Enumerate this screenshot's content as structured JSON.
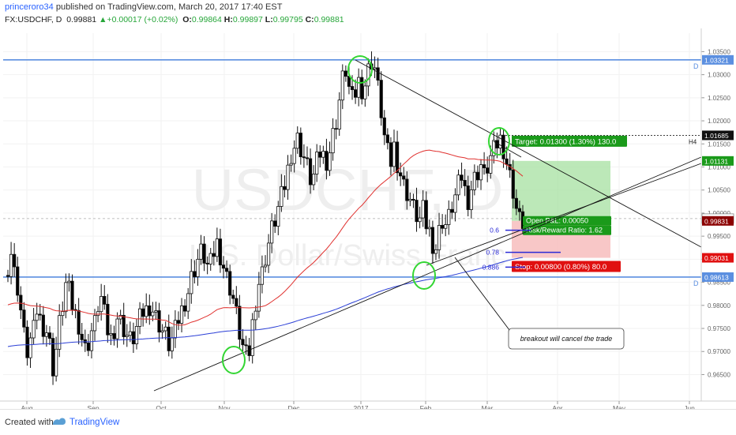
{
  "header": {
    "author": "princeroro34",
    "published_text": "published on TradingView.com, March 20, 2017 17:40 EST",
    "symbol": "FX:USDCHF, D",
    "last_price": "0.99881",
    "change": "+0.00017 (+0.02%)",
    "o_label": "O:",
    "o_value": "0.99864",
    "h_label": "H:",
    "h_value": "0.99897",
    "l_label": "L:",
    "l_value": "0.99795",
    "c_label": "C:",
    "c_value": "0.99881"
  },
  "footer": {
    "created_with": "Created with",
    "brand": "TradingView"
  },
  "watermark": {
    "symbol": "USDCHF, D",
    "name": "U.S. Dollar/Swiss Franc"
  },
  "colors": {
    "bull": "#ffffff",
    "bear": "#000000",
    "ma_red": "#e0312f",
    "ma_blue": "#2b3fd6",
    "level_line": "#5b8fe0",
    "target_green": "#1a9a1a",
    "stop_red": "#e01010",
    "highlight_circle": "#33d633",
    "fib": "#2b2bd6"
  },
  "chart_data": {
    "type": "candlestick",
    "x_axis_ticks": [
      "Aug",
      "Sep",
      "Oct",
      "Nov",
      "Dec",
      "2017",
      "Feb",
      "Mar",
      "Apr",
      "May",
      "Jun"
    ],
    "y_axis_ticks": [
      "1.03500",
      "1.03000",
      "1.02500",
      "1.02000",
      "1.01500",
      "1.01000",
      "1.00500",
      "1.00000",
      "0.99500",
      "0.99000",
      "0.98500",
      "0.98000",
      "0.97500",
      "0.97000",
      "0.96500"
    ],
    "ylim": [
      0.962,
      1.039
    ],
    "price_tags": [
      {
        "label": "1.03321",
        "value": 1.03321,
        "style": "blue"
      },
      {
        "label": "1.01685",
        "value": 1.01685,
        "style": "black"
      },
      {
        "label": "1.01131",
        "value": 1.01131,
        "style": "green"
      },
      {
        "label": "0.99881",
        "value": 0.99881,
        "style": "outline"
      },
      {
        "label": "0.99831",
        "value": 0.99831,
        "style": "darkred"
      },
      {
        "label": "0.99031",
        "value": 0.99031,
        "style": "red"
      },
      {
        "label": "0.98613",
        "value": 0.98613,
        "style": "blue"
      }
    ],
    "horizontal_levels": [
      {
        "value": 1.03321,
        "label": "D"
      },
      {
        "value": 0.98613,
        "label": "D"
      },
      {
        "value": 1.01685,
        "label": "H4"
      }
    ],
    "position": {
      "target_label": "Target: 0.01300 (1.30%) 130.0",
      "pnl_label": "Open P&L: 0.00050",
      "rr_label": "Risk/Reward Ratio: 1.62",
      "stop_label": "Stop: 0.00800 (0.80%) 80.0",
      "entry": 0.99831,
      "target": 1.01131,
      "stop": 0.99031
    },
    "fib_levels": [
      {
        "label": "0.6",
        "value": 0.998
      },
      {
        "label": "0.78",
        "value": 0.9932
      },
      {
        "label": "0.886",
        "value": 0.99
      }
    ],
    "annotation": "breakout will cancel the trade",
    "candle_seed": [
      0.9885,
      0.9915,
      0.987,
      0.984,
      0.979,
      0.9735,
      0.97,
      0.9725,
      0.9745,
      0.979,
      0.977,
      0.9755,
      0.9745,
      0.9715,
      0.9665,
      0.9705,
      0.976,
      0.98,
      0.9845,
      0.983,
      0.98,
      0.978,
      0.976,
      0.973,
      0.9705,
      0.972,
      0.9745,
      0.976,
      0.98,
      0.9815,
      0.978,
      0.9745,
      0.973,
      0.975,
      0.9775,
      0.9765,
      0.975,
      0.9735,
      0.9725,
      0.973,
      0.975,
      0.977,
      0.9785,
      0.979,
      0.98,
      0.979,
      0.9775,
      0.976,
      0.9745,
      0.9735,
      0.9715,
      0.9725,
      0.9745,
      0.977,
      0.979,
      0.981,
      0.983,
      0.986,
      0.988,
      0.99,
      0.9915,
      0.9905,
      0.9885,
      0.989,
      0.9915,
      0.9935,
      0.991,
      0.9885,
      0.986,
      0.984,
      0.9815,
      0.978,
      0.974,
      0.971,
      0.969,
      0.97,
      0.976,
      0.981,
      0.985,
      0.987,
      0.9905,
      0.9935,
      0.9965,
      0.9985,
      1.001,
      1.0035,
      1.006,
      1.0095,
      1.013,
      1.0145,
      1.016,
      1.014,
      1.012,
      1.01,
      1.0075,
      1.008,
      1.011,
      1.013,
      1.0125,
      1.0115,
      1.0135,
      1.017,
      1.02,
      1.0245,
      1.029,
      1.031,
      1.027,
      1.0245,
      1.026,
      1.0285,
      1.027,
      1.028,
      1.031,
      1.033,
      1.0315,
      1.027,
      1.022,
      1.0165,
      1.013,
      1.011,
      1.0145,
      1.011,
      1.0085,
      1.006,
      1.0045,
      1.003,
      1.001,
      0.9995,
      0.9985,
      1.0005,
      0.9975,
      0.996,
      0.9935,
      0.9925,
      0.996,
      0.9985,
      0.9975,
      0.999,
      1.0015,
      1.0035,
      1.006,
      1.008,
      1.005,
      1.003,
      1.0055,
      1.0075,
      1.009,
      1.0105,
      1.008,
      1.01,
      1.012,
      1.0135,
      1.015,
      1.016,
      1.014,
      1.011,
      1.008,
      1.005,
      1.001,
      0.9985,
      0.998
    ]
  }
}
